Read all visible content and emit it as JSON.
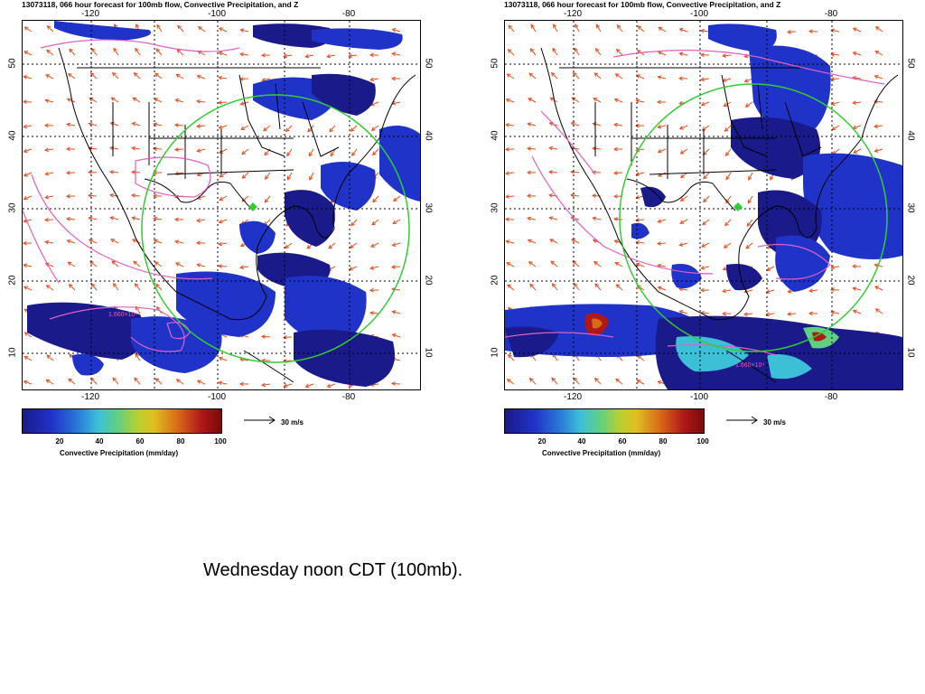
{
  "panels": [
    {
      "id": "left",
      "title": "13073118, 066 hour forecast for 100mb flow, Convective Precipitation, and Z",
      "x_ticks": [
        "-120",
        "-100",
        "-80"
      ],
      "y_ticks": [
        "50",
        "40",
        "30",
        "20",
        "10"
      ],
      "contour_labels": [
        "1.660×10⁴"
      ],
      "colorbar": {
        "ticks": [
          "20",
          "40",
          "60",
          "80",
          "100"
        ],
        "label": "Convective Precipitation (mm/day)"
      },
      "reference_vector": "30 m/s"
    },
    {
      "id": "right",
      "title": "13073118, 066 hour forecast for 100mb flow, Convective Precipitation, and Z",
      "x_ticks": [
        "-120",
        "-100",
        "-80"
      ],
      "y_ticks": [
        "50",
        "40",
        "30",
        "20",
        "10"
      ],
      "contour_labels": [
        "1.660×10⁴"
      ],
      "colorbar": {
        "ticks": [
          "20",
          "40",
          "60",
          "80",
          "100"
        ],
        "label": "Convective Precipitation (mm/day)"
      },
      "reference_vector": "30 m/s"
    }
  ],
  "caption": "Wednesday noon CDT (100mb).",
  "colors": {
    "precip_low": "#1a1a8a",
    "precip_mid": "#2033c8",
    "precip_high": "#b01818",
    "contour": "#e060c0",
    "circle": "#33cc33",
    "wind_vectors": "#e05020"
  }
}
